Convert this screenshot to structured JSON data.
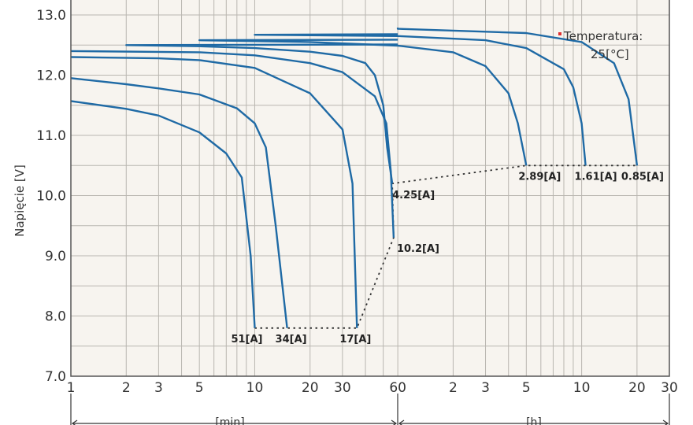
{
  "chart_data": {
    "type": "line",
    "ylabel": "Napięcie [V]",
    "ylim": [
      7.0,
      13.0
    ],
    "y_ticks": [
      "13.0",
      "12.0",
      "11.0",
      "10.0",
      "9.0",
      "8.0",
      "7.0"
    ],
    "x_ticks": [
      "1",
      "2",
      "3",
      "5",
      "10",
      "20",
      "30",
      "60",
      "2",
      "3",
      "5",
      "10",
      "20",
      "30"
    ],
    "x_scale": "log",
    "x_unit_min": "[min]",
    "x_unit_h": "[h]",
    "annotation_line1": "Temperatura:",
    "annotation_line2": "25[°C]",
    "annotation_color": "#e03030",
    "line_color": "#1f6aa5",
    "grid": true,
    "series": [
      {
        "name": "51[A]",
        "x": [
          1,
          2,
          3,
          5,
          7,
          8.5,
          9.5,
          10
        ],
        "y": [
          11.57,
          11.44,
          11.33,
          11.05,
          10.7,
          10.3,
          9.0,
          7.8
        ]
      },
      {
        "name": "34[A]",
        "x": [
          1,
          2,
          3,
          5,
          8,
          10,
          11.5,
          13,
          15
        ],
        "y": [
          11.95,
          11.85,
          11.78,
          11.68,
          11.45,
          11.2,
          10.8,
          9.5,
          7.8
        ]
      },
      {
        "name": "17[A]",
        "x": [
          1,
          3,
          5,
          10,
          20,
          30,
          34,
          36
        ],
        "y": [
          12.3,
          12.28,
          12.25,
          12.12,
          11.7,
          11.1,
          10.2,
          7.8
        ]
      },
      {
        "name": "10.2[A]",
        "x": [
          1,
          5,
          10,
          20,
          30,
          45,
          52,
          55,
          57
        ],
        "y": [
          12.4,
          12.38,
          12.33,
          12.2,
          12.05,
          11.65,
          11.2,
          10.4,
          9.3
        ]
      },
      {
        "name": "4.25[A]",
        "x": [
          60,
          120,
          300,
          600,
          1200,
          1800,
          2400,
          2700,
          3000,
          3150,
          3360
        ],
        "y": [
          12.51,
          12.5,
          12.48,
          12.45,
          12.39,
          12.32,
          12.2,
          12.0,
          11.5,
          10.8,
          10.2
        ]
      },
      {
        "name": "2.89[A]",
        "x": [
          60,
          300,
          1200,
          3600,
          7200,
          10800,
          14400,
          16200,
          18000
        ],
        "y": [
          12.59,
          12.58,
          12.55,
          12.49,
          12.38,
          12.15,
          11.7,
          11.2,
          10.5
        ]
      },
      {
        "name": "1.61[A]",
        "x": [
          60,
          600,
          3600,
          10800,
          18000,
          28800,
          32400,
          36000,
          37800
        ],
        "y": [
          12.68,
          12.67,
          12.65,
          12.58,
          12.45,
          12.1,
          11.8,
          11.2,
          10.5
        ]
      },
      {
        "name": "0.85[A]",
        "x": [
          60,
          3600,
          18000,
          36000,
          54000,
          64800,
          72000
        ],
        "y": [
          12.79,
          12.77,
          12.7,
          12.55,
          12.2,
          11.6,
          10.5
        ]
      }
    ],
    "cutoff_line": {
      "x": [
        10,
        15,
        36,
        57,
        3360,
        18000,
        37800,
        72000
      ],
      "y": [
        7.8,
        7.8,
        7.8,
        9.3,
        10.2,
        10.5,
        10.5,
        10.5
      ]
    }
  }
}
